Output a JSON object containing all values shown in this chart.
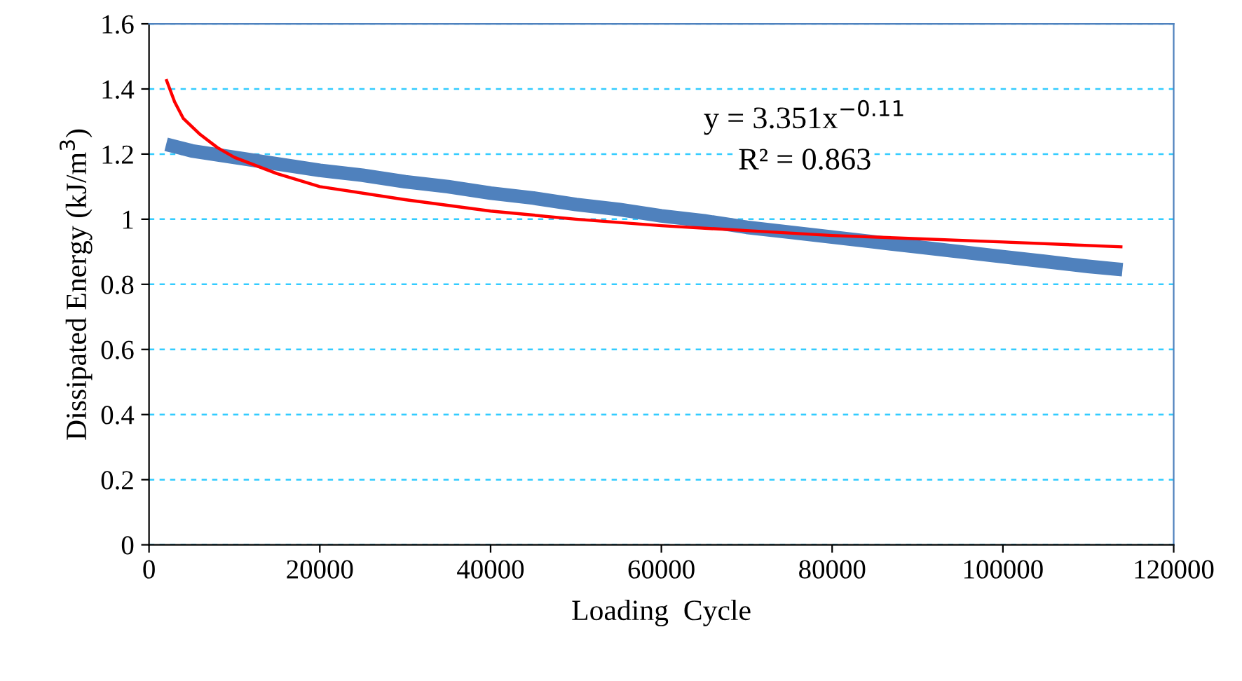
{
  "chart_data": {
    "type": "line",
    "xlabel": "Loading  Cycle",
    "ylabel": "Dissipated Energy (kJ/m$^{3}$)",
    "xlim": [
      0,
      120000
    ],
    "xticks": [
      0,
      20000,
      40000,
      60000,
      80000,
      100000,
      120000
    ],
    "ylim": [
      0,
      1.6
    ],
    "yticks": [
      0,
      0.2,
      0.4,
      0.6,
      0.8,
      1,
      1.2,
      1.4,
      1.6
    ],
    "grid": "y",
    "annotations": [
      "y = 3.351x$^{−0.11}$",
      "R² = 0.863"
    ],
    "series": [
      {
        "color": "#4f81bd",
        "x": [
          2000,
          5000,
          10000,
          15000,
          20000,
          25000,
          30000,
          35000,
          40000,
          45000,
          50000,
          55000,
          60000,
          65000,
          70000,
          75000,
          80000,
          85000,
          90000,
          95000,
          100000,
          105000,
          110000,
          114000
        ],
        "values": [
          1.23,
          1.21,
          1.19,
          1.17,
          1.15,
          1.135,
          1.115,
          1.1,
          1.08,
          1.065,
          1.045,
          1.03,
          1.01,
          0.995,
          0.975,
          0.96,
          0.945,
          0.93,
          0.915,
          0.9,
          0.885,
          0.87,
          0.855,
          0.845
        ]
      },
      {
        "color": "#ff0000",
        "type": "line",
        "x": [
          2000,
          3000,
          4000,
          6000,
          8000,
          10000,
          15000,
          20000,
          30000,
          40000,
          50000,
          60000,
          70000,
          80000,
          90000,
          100000,
          114000
        ],
        "values": [
          1.43,
          1.36,
          1.31,
          1.26,
          1.22,
          1.19,
          1.14,
          1.1,
          1.06,
          1.025,
          1.0,
          0.98,
          0.965,
          0.95,
          0.94,
          0.93,
          0.915
        ]
      }
    ]
  }
}
